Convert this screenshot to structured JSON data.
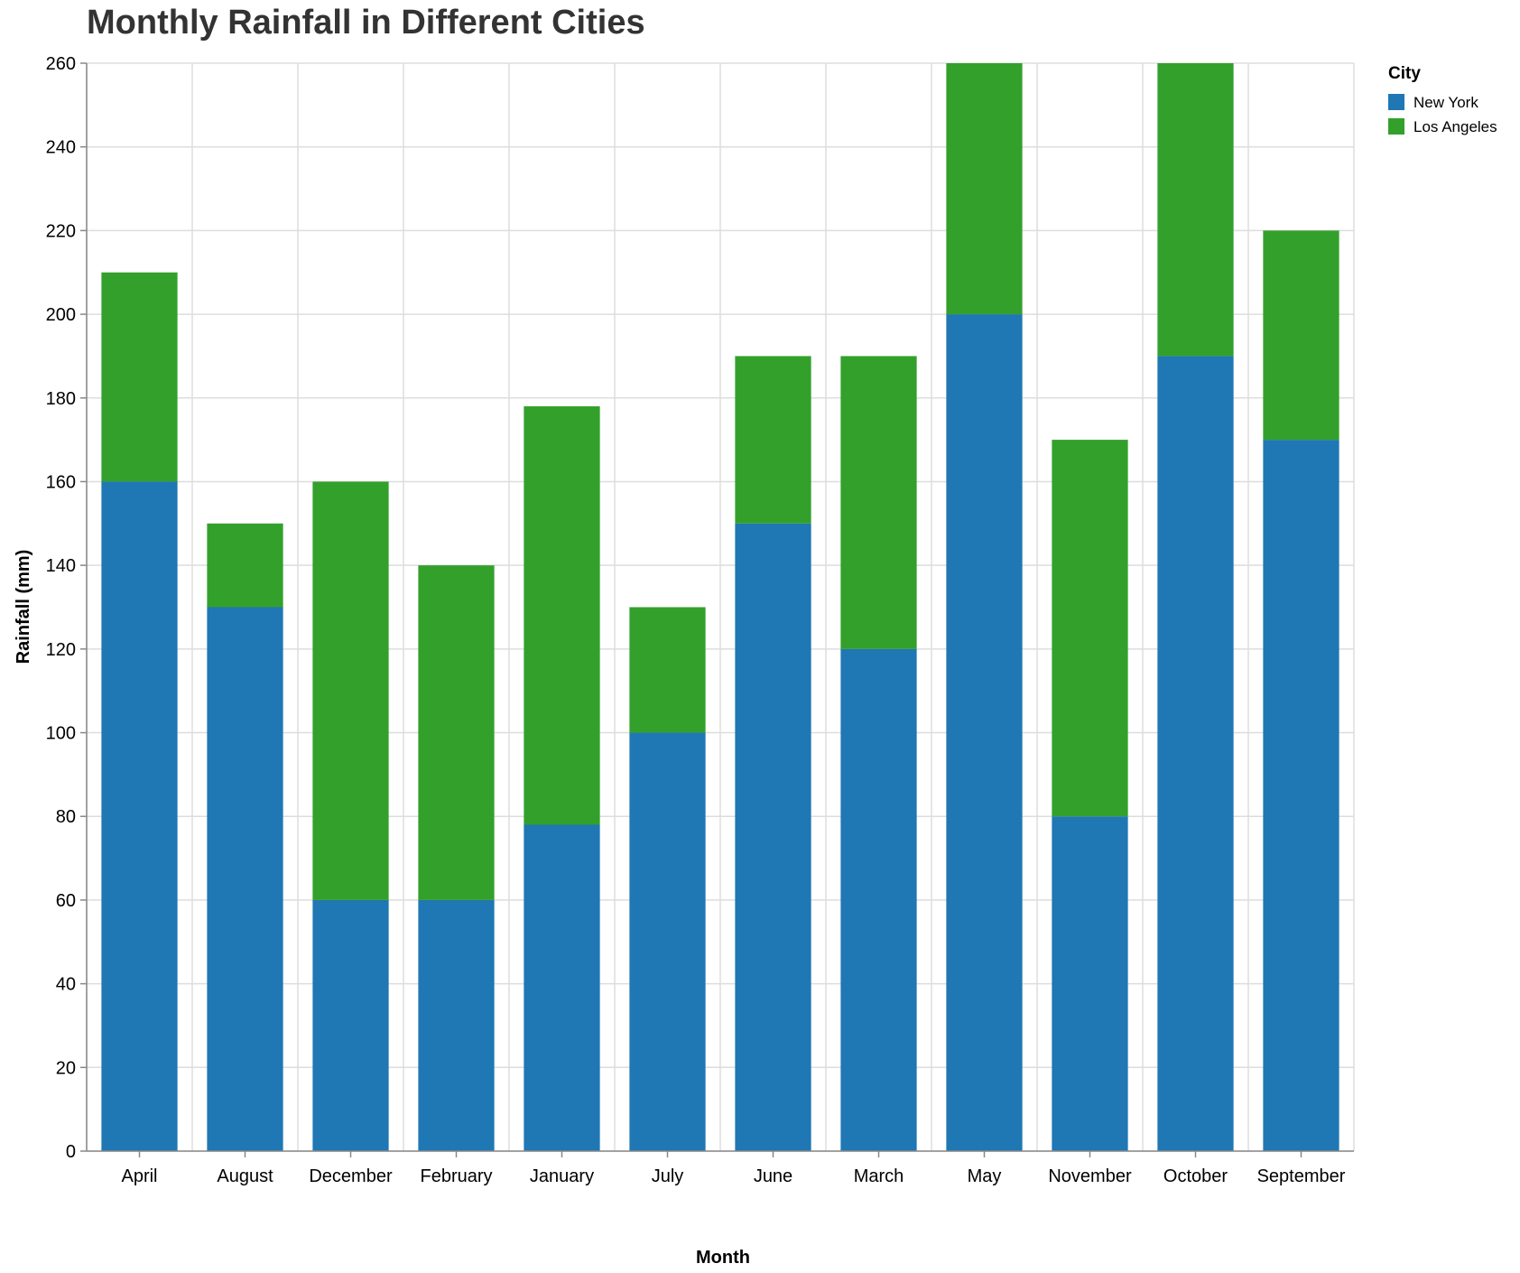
{
  "chart_data": {
    "type": "bar",
    "stacked": true,
    "title": "Monthly Rainfall in Different Cities",
    "xlabel": "Month",
    "ylabel": "Rainfall (mm)",
    "ylim": [
      0,
      260
    ],
    "yticks": [
      0,
      20,
      40,
      60,
      80,
      100,
      120,
      140,
      160,
      180,
      200,
      220,
      240,
      260
    ],
    "grid": true,
    "legend": {
      "title": "City",
      "placement": "top-right"
    },
    "categories": [
      "April",
      "August",
      "December",
      "February",
      "January",
      "July",
      "June",
      "March",
      "May",
      "November",
      "October",
      "September"
    ],
    "series": [
      {
        "name": "New York",
        "color": "#1f77b4",
        "values": [
          160,
          130,
          60,
          60,
          78,
          100,
          150,
          120,
          200,
          80,
          190,
          170
        ]
      },
      {
        "name": "Los Angeles",
        "color": "#33a02c",
        "values": [
          50,
          20,
          100,
          80,
          100,
          30,
          40,
          70,
          70,
          90,
          80,
          50
        ]
      }
    ]
  }
}
